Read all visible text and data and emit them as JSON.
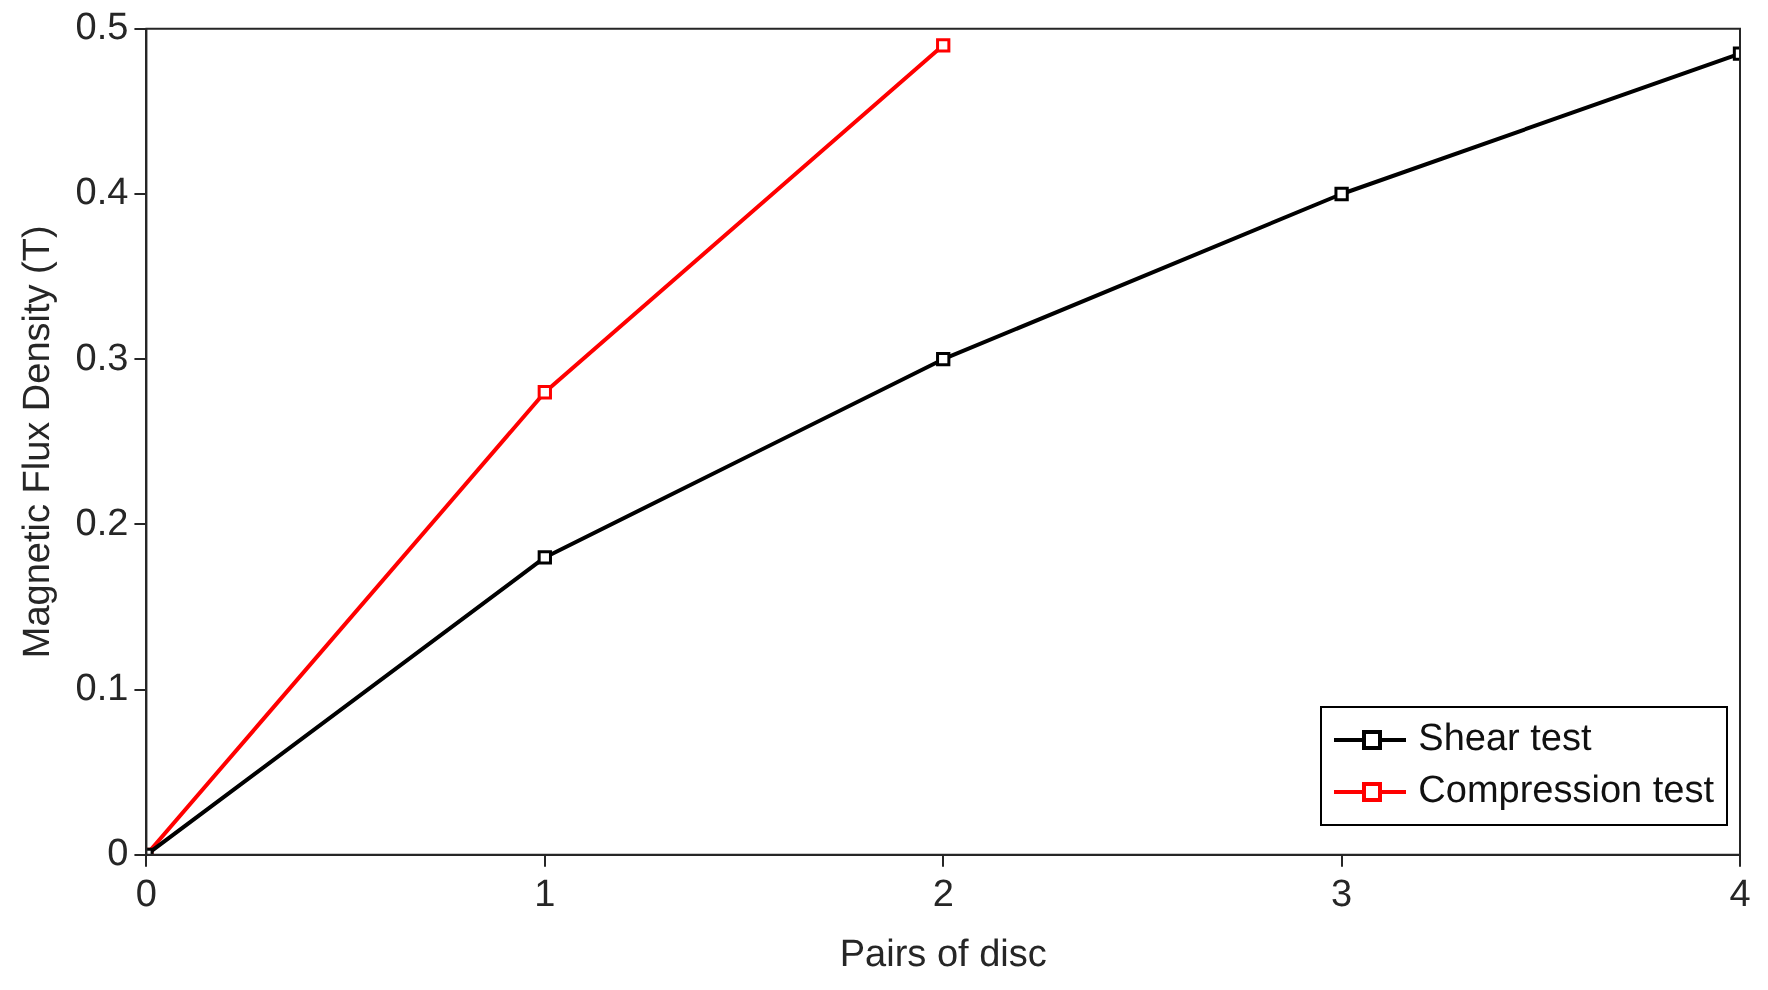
{
  "chart_data": {
    "type": "line",
    "xlabel": "Pairs of disc",
    "ylabel": "Magnetic Flux Density (T)",
    "x": [
      0,
      1,
      2,
      3,
      4
    ],
    "series": [
      {
        "name": "Shear test",
        "color": "#000000",
        "values": [
          0,
          0.18,
          0.3,
          0.4,
          0.485
        ]
      },
      {
        "name": "Compression test",
        "color": "#ff0000",
        "x": [
          0,
          1,
          2
        ],
        "values": [
          0,
          0.28,
          0.49
        ]
      }
    ],
    "xlim": [
      0,
      4
    ],
    "xticks": [
      0,
      1,
      2,
      3,
      4
    ],
    "ylim": [
      0,
      0.5
    ],
    "yticks": [
      0,
      0.1,
      0.2,
      0.3,
      0.4,
      0.5
    ],
    "grid": false,
    "legend": "bottom right",
    "marker": "square",
    "line_style": "solid"
  }
}
